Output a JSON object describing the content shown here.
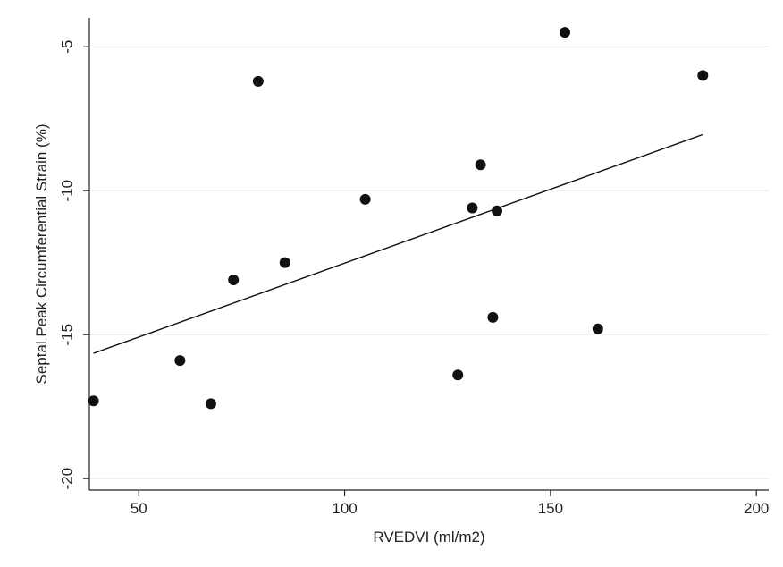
{
  "chart_data": {
    "type": "scatter",
    "xlabel": "RVEDVI (ml/m2)",
    "ylabel": "Septal Peak Circumferential Strain (%)",
    "xlim": [
      38,
      203
    ],
    "ylim": [
      -20.4,
      -4.0
    ],
    "xticks": [
      50,
      100,
      150,
      200
    ],
    "yticks": [
      -5,
      -10,
      -15,
      -20
    ],
    "xtick_labels": [
      "50",
      "100",
      "150",
      "200"
    ],
    "ytick_labels": [
      "-5",
      "-10",
      "-15",
      "-20"
    ],
    "grid": "horizontal",
    "points": [
      {
        "x": 39,
        "y": -17.3
      },
      {
        "x": 60,
        "y": -15.9
      },
      {
        "x": 67.5,
        "y": -17.4
      },
      {
        "x": 73,
        "y": -13.1
      },
      {
        "x": 79,
        "y": -6.2
      },
      {
        "x": 85.5,
        "y": -12.5
      },
      {
        "x": 105,
        "y": -10.3
      },
      {
        "x": 127.5,
        "y": -16.4
      },
      {
        "x": 131,
        "y": -10.6
      },
      {
        "x": 133,
        "y": -9.1
      },
      {
        "x": 136,
        "y": -14.4
      },
      {
        "x": 137,
        "y": -10.7
      },
      {
        "x": 153.5,
        "y": -4.5
      },
      {
        "x": 161.5,
        "y": -14.8
      },
      {
        "x": 187,
        "y": -6.0
      }
    ],
    "fit_line": {
      "x": [
        39,
        187
      ],
      "y": [
        -15.65,
        -8.05
      ]
    },
    "colors": {
      "point": "#111111",
      "line": "#111111",
      "grid": "#e6e6e6"
    }
  }
}
